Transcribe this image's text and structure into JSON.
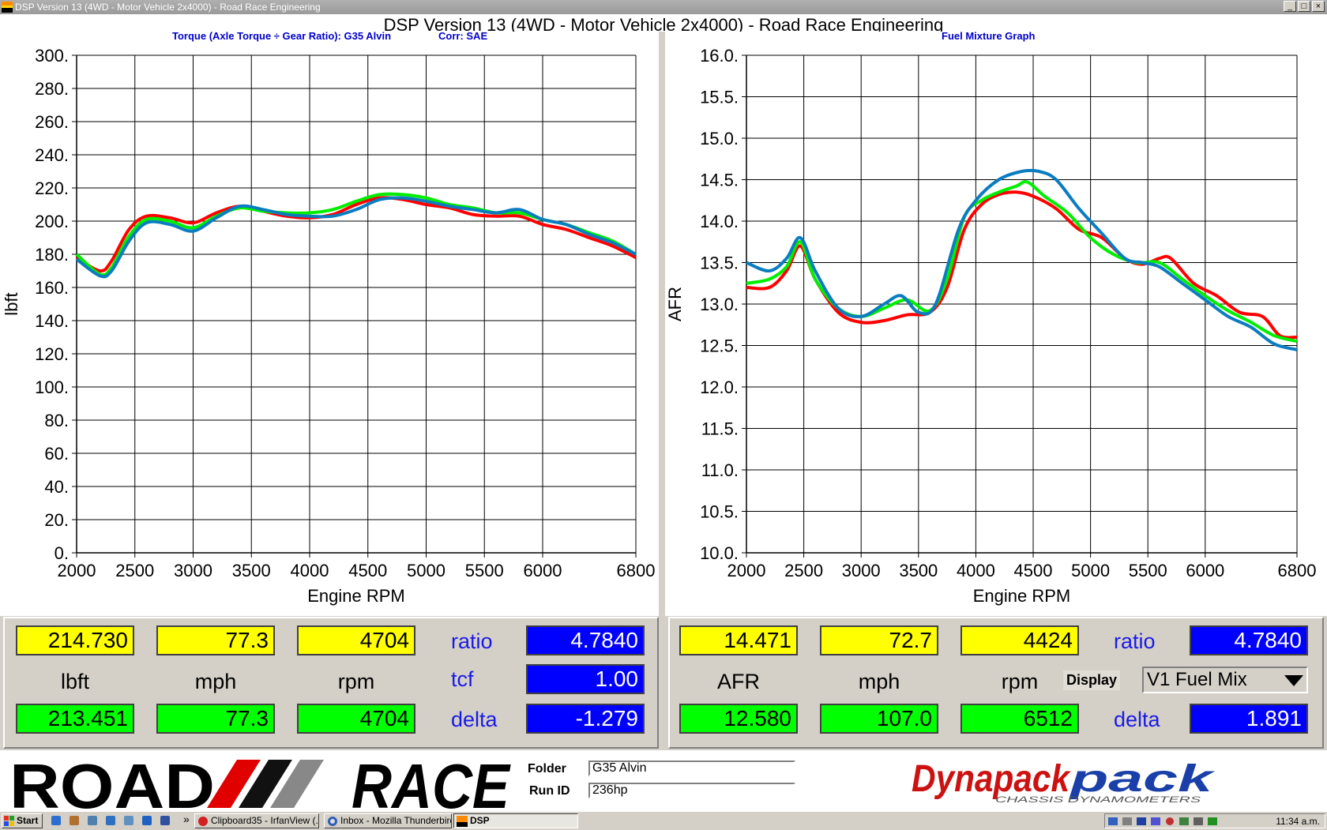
{
  "window": {
    "title": "DSP Version 13 (4WD - Motor Vehicle 2x4000) - Road Race Engineering",
    "app_title": "DSP Version 13 (4WD - Motor Vehicle 2x4000) - Road Race Engineering",
    "buttons": [
      "_",
      "□",
      "×"
    ]
  },
  "left_panel": {
    "header_title": "Torque (Axle Torque ÷ Gear Ratio): G35 Alvin",
    "header_corr": "Corr: SAE",
    "readout": {
      "top_values": [
        "214.730",
        "77.3",
        "4704"
      ],
      "units": [
        "lbft",
        "mph",
        "rpm"
      ],
      "bottom_values": [
        "213.451",
        "77.3",
        "4704"
      ],
      "ratio_label": "ratio",
      "ratio_value": "4.7840",
      "tcf_label": "tcf",
      "tcf_value": "1.00",
      "delta_label": "delta",
      "delta_value": "-1.279"
    }
  },
  "right_panel": {
    "header_title": "Fuel Mixture Graph",
    "readout": {
      "top_values": [
        "14.471",
        "72.7",
        "4424"
      ],
      "units": [
        "AFR",
        "mph",
        "rpm"
      ],
      "bottom_values": [
        "12.580",
        "107.0",
        "6512"
      ],
      "ratio_label": "ratio",
      "ratio_value": "4.7840",
      "display_label": "Display",
      "display_value": "V1 Fuel Mix",
      "delta_label": "delta",
      "delta_value": "1.891"
    }
  },
  "footer": {
    "logo_left": "ROAD RACE",
    "folder_label": "Folder",
    "folder_value": "G35 Alvin",
    "runid_label": "Run ID",
    "runid_value": "236hp",
    "logo_right": "Dynapack",
    "logo_right_sub": "CHASSIS DYNAMOMETERS"
  },
  "taskbar": {
    "start": "Start",
    "quick_launch_icons": [
      "ie-icon",
      "outlook-icon",
      "notepad-icon",
      "wordpad-icon",
      "calc-icon",
      "ie2-icon",
      "thunderbird-icon"
    ],
    "chevron": "»",
    "tasks": [
      "Clipboard35 - IrfanView (...",
      "Inbox - Mozilla Thunderbird",
      "DSP"
    ],
    "clock": "11:34 a.m."
  },
  "colors": {
    "run1": "#ff0000",
    "run2": "#00ee00",
    "run3": "#0a7cc0",
    "readout_yellow": "#ffff00",
    "readout_green": "#00ff00",
    "readout_blue": "#0000ff",
    "header_blue": "#0000cc"
  },
  "chart_data": [
    {
      "type": "line",
      "title": "Torque (Axle Torque ÷ Gear Ratio): G35 Alvin",
      "xlabel": "Engine RPM",
      "ylabel": "lbft",
      "xlim": [
        2000,
        6800
      ],
      "ylim": [
        0,
        300
      ],
      "xticks": [
        2000,
        2500,
        3000,
        3500,
        4000,
        4500,
        5000,
        5500,
        6000,
        6800
      ],
      "yticks": [
        0,
        20,
        40,
        60,
        80,
        100,
        120,
        140,
        160,
        180,
        200,
        220,
        240,
        260,
        280,
        300
      ],
      "grid": true,
      "series": [
        {
          "color": "#ff0000",
          "x": [
            2000,
            2200,
            2300,
            2450,
            2600,
            2800,
            3000,
            3200,
            3400,
            3600,
            3800,
            4000,
            4200,
            4400,
            4600,
            4800,
            5000,
            5200,
            5400,
            5600,
            5800,
            6000,
            6200,
            6400,
            6600,
            6800
          ],
          "y": [
            178,
            170,
            176,
            195,
            203,
            202,
            199,
            205,
            209,
            206,
            203,
            202,
            204,
            210,
            214,
            213,
            210,
            208,
            204,
            203,
            203,
            198,
            195,
            190,
            185,
            178
          ]
        },
        {
          "color": "#00ee00",
          "x": [
            2000,
            2200,
            2300,
            2450,
            2600,
            2800,
            3000,
            3200,
            3400,
            3600,
            3800,
            4000,
            4200,
            4400,
            4600,
            4800,
            5000,
            5200,
            5400,
            5600,
            5800,
            6000,
            6200,
            6400,
            6600,
            6800
          ],
          "y": [
            180,
            168,
            172,
            191,
            201,
            200,
            196,
            203,
            208,
            206,
            205,
            205,
            207,
            212,
            216,
            216,
            214,
            210,
            208,
            205,
            205,
            201,
            198,
            193,
            188,
            180
          ]
        },
        {
          "color": "#0a7cc0",
          "x": [
            2000,
            2200,
            2300,
            2450,
            2600,
            2800,
            3000,
            3200,
            3400,
            3600,
            3800,
            4000,
            4200,
            4400,
            4600,
            4800,
            5000,
            5200,
            5400,
            5600,
            5800,
            6000,
            6200,
            6400,
            6600,
            6800
          ],
          "y": [
            177,
            167,
            170,
            188,
            199,
            198,
            194,
            202,
            209,
            207,
            204,
            203,
            203,
            207,
            213,
            214,
            212,
            209,
            207,
            205,
            207,
            201,
            198,
            192,
            187,
            180
          ]
        }
      ]
    },
    {
      "type": "line",
      "title": "Fuel Mixture Graph",
      "xlabel": "Engine RPM",
      "ylabel": "AFR",
      "xlim": [
        2000,
        6800
      ],
      "ylim": [
        10.0,
        16.0
      ],
      "xticks": [
        2000,
        2500,
        3000,
        3500,
        4000,
        4500,
        5000,
        5500,
        6000,
        6800
      ],
      "yticks": [
        10.0,
        10.5,
        11.0,
        11.5,
        12.0,
        12.5,
        13.0,
        13.5,
        14.0,
        14.5,
        15.0,
        15.5,
        16.0
      ],
      "grid": true,
      "series": [
        {
          "color": "#ff0000",
          "x": [
            2000,
            2200,
            2350,
            2470,
            2600,
            2800,
            3000,
            3200,
            3400,
            3600,
            3750,
            3900,
            4050,
            4200,
            4350,
            4500,
            4700,
            4900,
            5100,
            5300,
            5450,
            5600,
            5700,
            5900,
            6100,
            6300,
            6500,
            6650,
            6800
          ],
          "y": [
            13.2,
            13.2,
            13.4,
            13.7,
            13.3,
            12.9,
            12.78,
            12.8,
            12.87,
            12.9,
            13.2,
            13.9,
            14.2,
            14.32,
            14.35,
            14.3,
            14.15,
            13.9,
            13.8,
            13.55,
            13.48,
            13.55,
            13.55,
            13.25,
            13.1,
            12.9,
            12.85,
            12.62,
            12.6
          ]
        },
        {
          "color": "#00ee00",
          "x": [
            2000,
            2200,
            2350,
            2470,
            2600,
            2800,
            3000,
            3200,
            3400,
            3600,
            3750,
            3900,
            4050,
            4200,
            4350,
            4450,
            4600,
            4800,
            5000,
            5200,
            5400,
            5600,
            5800,
            6000,
            6200,
            6400,
            6600,
            6800
          ],
          "y": [
            13.25,
            13.3,
            13.45,
            13.75,
            13.3,
            12.95,
            12.85,
            12.95,
            13.05,
            12.92,
            13.3,
            14.05,
            14.25,
            14.35,
            14.42,
            14.47,
            14.3,
            14.1,
            13.8,
            13.6,
            13.5,
            13.5,
            13.3,
            13.1,
            12.92,
            12.78,
            12.62,
            12.55
          ]
        },
        {
          "color": "#0a7cc0",
          "x": [
            2000,
            2200,
            2350,
            2470,
            2600,
            2800,
            3000,
            3200,
            3350,
            3500,
            3650,
            3850,
            4000,
            4200,
            4400,
            4550,
            4700,
            4900,
            5100,
            5300,
            5450,
            5600,
            5800,
            6000,
            6200,
            6400,
            6600,
            6800
          ],
          "y": [
            13.5,
            13.4,
            13.55,
            13.8,
            13.4,
            12.95,
            12.85,
            13.0,
            13.1,
            12.9,
            13.0,
            13.9,
            14.25,
            14.5,
            14.6,
            14.6,
            14.5,
            14.15,
            13.85,
            13.55,
            13.5,
            13.45,
            13.25,
            13.05,
            12.85,
            12.72,
            12.52,
            12.45
          ]
        }
      ]
    }
  ]
}
